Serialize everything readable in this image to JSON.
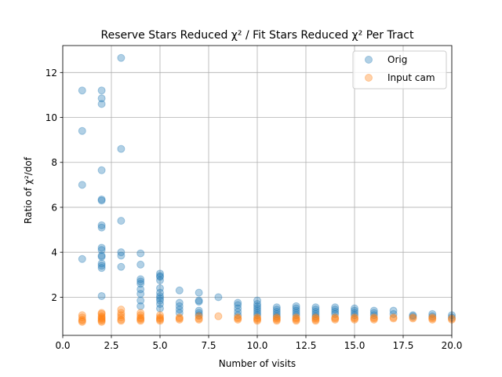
{
  "chart_data": {
    "type": "scatter",
    "title": "Reserve Stars Reduced χ² / Fit Stars Reduced χ² Per Tract",
    "xlabel": "Number of visits",
    "ylabel": "Ratio of χ²/dof",
    "xlim": [
      0,
      20
    ],
    "ylim": [
      0.3,
      13.2
    ],
    "xticks": [
      0,
      2.5,
      5,
      7.5,
      10,
      12.5,
      15,
      17.5,
      20
    ],
    "xtick_labels": [
      "0.0",
      "2.5",
      "5.0",
      "7.5",
      "10.0",
      "12.5",
      "15.0",
      "17.5",
      "20.0"
    ],
    "yticks": [
      2,
      4,
      6,
      8,
      10,
      12
    ],
    "ytick_labels": [
      "2",
      "4",
      "6",
      "8",
      "10",
      "12"
    ],
    "grid": true,
    "legend_position": "top-right",
    "marker_alpha": 0.35,
    "series": [
      {
        "name": "Orig",
        "color": "#1f77b4",
        "points": [
          [
            1,
            11.2
          ],
          [
            1,
            9.4
          ],
          [
            1,
            7.0
          ],
          [
            1,
            3.7
          ],
          [
            2,
            11.2
          ],
          [
            2,
            10.85
          ],
          [
            2,
            10.6
          ],
          [
            2,
            7.65
          ],
          [
            2,
            6.35
          ],
          [
            2,
            6.3
          ],
          [
            2,
            5.2
          ],
          [
            2,
            5.1
          ],
          [
            2,
            4.2
          ],
          [
            2,
            4.1
          ],
          [
            2,
            3.85
          ],
          [
            2,
            3.8
          ],
          [
            2,
            3.5
          ],
          [
            2,
            3.4
          ],
          [
            2,
            3.3
          ],
          [
            2,
            2.05
          ],
          [
            3,
            12.65
          ],
          [
            3,
            8.6
          ],
          [
            3,
            5.4
          ],
          [
            3,
            4.0
          ],
          [
            3,
            3.85
          ],
          [
            3,
            3.35
          ],
          [
            4,
            3.95
          ],
          [
            4,
            3.45
          ],
          [
            4,
            2.8
          ],
          [
            4,
            2.7
          ],
          [
            4,
            2.6
          ],
          [
            4,
            2.35
          ],
          [
            4,
            2.15
          ],
          [
            4,
            1.85
          ],
          [
            4,
            1.6
          ],
          [
            5,
            3.05
          ],
          [
            5,
            2.95
          ],
          [
            5,
            2.9
          ],
          [
            5,
            2.75
          ],
          [
            5,
            2.4
          ],
          [
            5,
            2.2
          ],
          [
            5,
            2.05
          ],
          [
            5,
            1.95
          ],
          [
            5,
            1.85
          ],
          [
            5,
            1.7
          ],
          [
            5,
            1.5
          ],
          [
            6,
            2.3
          ],
          [
            6,
            1.75
          ],
          [
            6,
            1.6
          ],
          [
            6,
            1.45
          ],
          [
            6,
            1.3
          ],
          [
            7,
            2.2
          ],
          [
            7,
            1.85
          ],
          [
            7,
            1.8
          ],
          [
            7,
            1.4
          ],
          [
            7,
            1.3
          ],
          [
            7,
            1.2
          ],
          [
            8,
            2.0
          ],
          [
            9,
            1.75
          ],
          [
            9,
            1.65
          ],
          [
            9,
            1.5
          ],
          [
            9,
            1.35
          ],
          [
            9,
            1.2
          ],
          [
            10,
            1.85
          ],
          [
            10,
            1.7
          ],
          [
            10,
            1.6
          ],
          [
            10,
            1.5
          ],
          [
            10,
            1.4
          ],
          [
            10,
            1.3
          ],
          [
            10,
            1.2
          ],
          [
            11,
            1.55
          ],
          [
            11,
            1.45
          ],
          [
            11,
            1.35
          ],
          [
            11,
            1.25
          ],
          [
            11,
            1.15
          ],
          [
            12,
            1.6
          ],
          [
            12,
            1.5
          ],
          [
            12,
            1.4
          ],
          [
            12,
            1.3
          ],
          [
            12,
            1.2
          ],
          [
            13,
            1.55
          ],
          [
            13,
            1.45
          ],
          [
            13,
            1.35
          ],
          [
            13,
            1.25
          ],
          [
            13,
            1.15
          ],
          [
            14,
            1.55
          ],
          [
            14,
            1.45
          ],
          [
            14,
            1.35
          ],
          [
            14,
            1.25
          ],
          [
            15,
            1.5
          ],
          [
            15,
            1.4
          ],
          [
            15,
            1.3
          ],
          [
            15,
            1.2
          ],
          [
            16,
            1.4
          ],
          [
            16,
            1.3
          ],
          [
            16,
            1.2
          ],
          [
            17,
            1.4
          ],
          [
            17,
            1.25
          ],
          [
            18,
            1.2
          ],
          [
            18,
            1.15
          ],
          [
            19,
            1.25
          ],
          [
            19,
            1.15
          ],
          [
            20,
            1.2
          ],
          [
            20,
            1.1
          ]
        ]
      },
      {
        "name": "Input cam",
        "color": "#ff7f0e",
        "points": [
          [
            1,
            1.2
          ],
          [
            1,
            1.1
          ],
          [
            1,
            1.0
          ],
          [
            1,
            0.95
          ],
          [
            1,
            0.9
          ],
          [
            2,
            1.3
          ],
          [
            2,
            1.25
          ],
          [
            2,
            1.15
          ],
          [
            2,
            1.1
          ],
          [
            2,
            1.05
          ],
          [
            2,
            1.0
          ],
          [
            2,
            0.95
          ],
          [
            2,
            0.9
          ],
          [
            3,
            1.45
          ],
          [
            3,
            1.3
          ],
          [
            3,
            1.2
          ],
          [
            3,
            1.1
          ],
          [
            3,
            1.0
          ],
          [
            3,
            0.95
          ],
          [
            4,
            1.3
          ],
          [
            4,
            1.2
          ],
          [
            4,
            1.1
          ],
          [
            4,
            1.05
          ],
          [
            4,
            1.0
          ],
          [
            4,
            0.95
          ],
          [
            5,
            1.2
          ],
          [
            5,
            1.1
          ],
          [
            5,
            1.05
          ],
          [
            5,
            1.0
          ],
          [
            5,
            0.95
          ],
          [
            6,
            1.1
          ],
          [
            6,
            1.05
          ],
          [
            6,
            1.0
          ],
          [
            7,
            1.15
          ],
          [
            7,
            1.05
          ],
          [
            7,
            1.0
          ],
          [
            8,
            1.15
          ],
          [
            9,
            1.1
          ],
          [
            9,
            1.05
          ],
          [
            9,
            1.0
          ],
          [
            10,
            1.1
          ],
          [
            10,
            1.05
          ],
          [
            10,
            1.0
          ],
          [
            10,
            0.95
          ],
          [
            11,
            1.1
          ],
          [
            11,
            1.05
          ],
          [
            11,
            1.0
          ],
          [
            11,
            0.95
          ],
          [
            12,
            1.1
          ],
          [
            12,
            1.05
          ],
          [
            12,
            1.0
          ],
          [
            12,
            0.95
          ],
          [
            13,
            1.1
          ],
          [
            13,
            1.05
          ],
          [
            13,
            1.0
          ],
          [
            13,
            0.95
          ],
          [
            14,
            1.1
          ],
          [
            14,
            1.05
          ],
          [
            14,
            1.0
          ],
          [
            15,
            1.1
          ],
          [
            15,
            1.05
          ],
          [
            15,
            1.0
          ],
          [
            16,
            1.1
          ],
          [
            16,
            1.05
          ],
          [
            16,
            1.0
          ],
          [
            17,
            1.1
          ],
          [
            17,
            1.05
          ],
          [
            18,
            1.1
          ],
          [
            18,
            1.05
          ],
          [
            19,
            1.1
          ],
          [
            19,
            1.05
          ],
          [
            19,
            1.0
          ],
          [
            20,
            1.05
          ],
          [
            20,
            1.0
          ]
        ]
      }
    ]
  }
}
